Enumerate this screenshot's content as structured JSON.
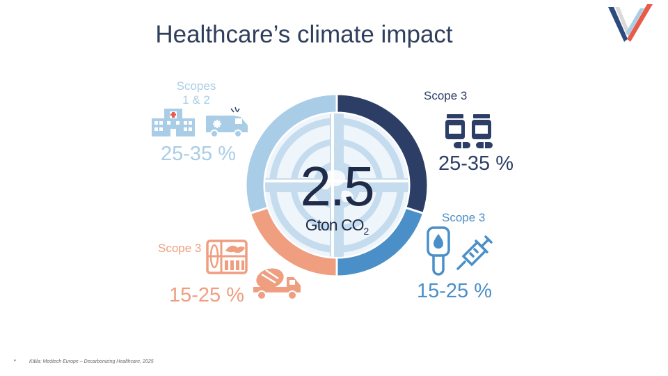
{
  "slide": {
    "title": "Healthcare’s climate impact",
    "footnote": "Källa: Medtech Europe – Decarbonizing Healthcare, 2025",
    "bullet": "•"
  },
  "center": {
    "value": "2.5",
    "unit": "Gton CO",
    "unit_sub": "2"
  },
  "segments": [
    {
      "label_line1": "Scope 3",
      "label_line2": "",
      "range": "25-35 %",
      "color": "#2c3e66"
    },
    {
      "label_line1": "Scope 3",
      "label_line2": "",
      "range": "15-25 %",
      "color": "#4a8fc8"
    },
    {
      "label_line1": "Scope 3",
      "label_line2": "",
      "range": "15-25 %",
      "color": "#ef9e80"
    },
    {
      "label_line1": "Scopes",
      "label_line2": "1 & 2",
      "range": "25-35 %",
      "color": "#a9cde6"
    }
  ],
  "chart_data": {
    "type": "pie",
    "title": "Healthcare’s climate impact",
    "total_label": "2.5 Gton CO2",
    "categories": [
      "Scope 3 (pharmaceuticals)",
      "Scope 3 (medical devices)",
      "Scope 3 (food & transport)",
      "Scopes 1 & 2"
    ],
    "values": [
      30,
      20,
      20,
      30
    ],
    "ranges": [
      "25-35 %",
      "15-25 %",
      "15-25 %",
      "25-35 %"
    ],
    "colors": [
      "#2c3e66",
      "#4a8fc8",
      "#ef9e80",
      "#a9cde6"
    ]
  }
}
